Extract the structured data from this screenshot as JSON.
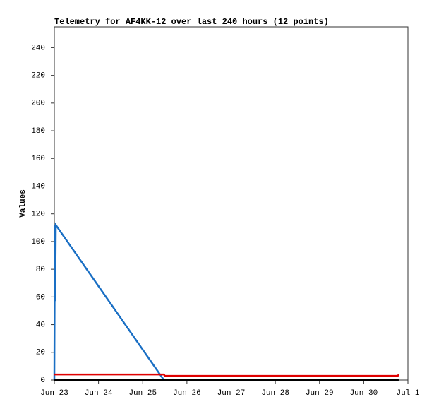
{
  "chart_data": {
    "type": "line",
    "title": "Telemetry for AF4KK-12 over last 240 hours (12 points)",
    "y_label": "Values",
    "xlim": [
      0,
      192
    ],
    "xticks": [
      {
        "value": 0,
        "label": "Jun 23"
      },
      {
        "value": 24,
        "label": "Jun 24"
      },
      {
        "value": 48,
        "label": "Jun 25"
      },
      {
        "value": 72,
        "label": "Jun 26"
      },
      {
        "value": 96,
        "label": "Jun 27"
      },
      {
        "value": 120,
        "label": "Jun 28"
      },
      {
        "value": 144,
        "label": "Jun 29"
      },
      {
        "value": 168,
        "label": "Jun 30"
      },
      {
        "value": 192,
        "label": "Jul 1"
      }
    ],
    "ylim": [
      0,
      255
    ],
    "yticks": [
      0,
      20,
      40,
      60,
      80,
      100,
      120,
      140,
      160,
      180,
      200,
      220,
      240
    ],
    "series": [
      {
        "color": "#1a6fc4",
        "x": [
          0,
          0.3,
          0.5,
          0.8,
          59.5
        ],
        "values": [
          0,
          112,
          57,
          112,
          0
        ]
      },
      {
        "color": "#e00000",
        "x": [
          0,
          59.5,
          60,
          186.5,
          187
        ],
        "values": [
          4,
          4,
          3,
          3,
          4
        ]
      },
      {
        "color": "#000000",
        "x": [
          0,
          187
        ],
        "values": [
          0,
          0
        ]
      }
    ]
  }
}
